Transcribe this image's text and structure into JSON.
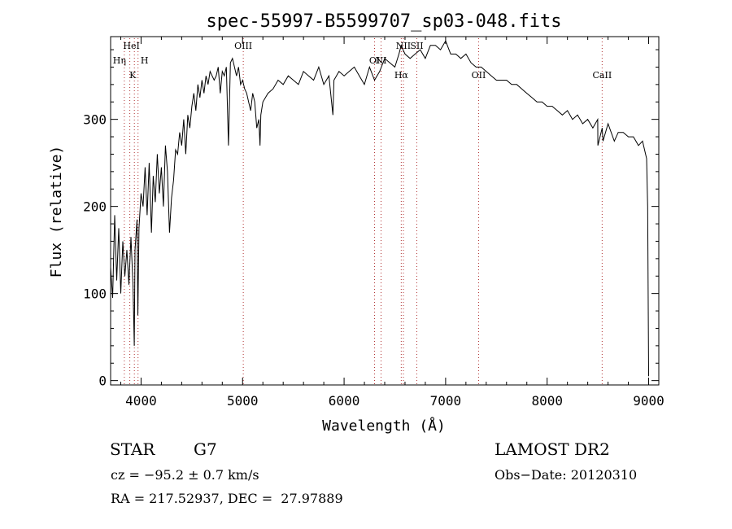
{
  "chart_data": {
    "type": "line",
    "title": "spec-55997-B5599707_sp03-048.fits",
    "xlabel": "Wavelength (Å)",
    "ylabel": "Flux (relative)",
    "xlim": [
      3700,
      9100
    ],
    "ylim": [
      -5,
      395
    ],
    "x_ticks": [
      4000,
      5000,
      6000,
      7000,
      8000,
      9000
    ],
    "y_ticks": [
      0,
      100,
      200,
      300
    ],
    "grid": false,
    "series": [
      {
        "x": [
          3700,
          3720,
          3740,
          3760,
          3780,
          3800,
          3820,
          3840,
          3860,
          3880,
          3900,
          3920,
          3933,
          3940,
          3960,
          3968,
          3980,
          4000,
          4020,
          4040,
          4060,
          4080,
          4102,
          4120,
          4140,
          4160,
          4180,
          4200,
          4220,
          4240,
          4260,
          4280,
          4300,
          4320,
          4340,
          4360,
          4380,
          4400,
          4420,
          4440,
          4460,
          4480,
          4500,
          4520,
          4540,
          4560,
          4580,
          4600,
          4620,
          4640,
          4660,
          4680,
          4700,
          4720,
          4740,
          4760,
          4780,
          4800,
          4820,
          4840,
          4861,
          4880,
          4900,
          4920,
          4940,
          4960,
          4980,
          5000,
          5020,
          5040,
          5060,
          5080,
          5100,
          5120,
          5140,
          5160,
          5172,
          5180,
          5200,
          5250,
          5300,
          5350,
          5400,
          5450,
          5500,
          5550,
          5600,
          5650,
          5700,
          5750,
          5800,
          5850,
          5890,
          5900,
          5950,
          6000,
          6050,
          6100,
          6150,
          6200,
          6250,
          6300,
          6350,
          6400,
          6450,
          6500,
          6540,
          6563,
          6580,
          6600,
          6650,
          6700,
          6750,
          6800,
          6850,
          6900,
          6950,
          7000,
          7050,
          7100,
          7150,
          7200,
          7250,
          7300,
          7350,
          7400,
          7450,
          7500,
          7550,
          7600,
          7650,
          7700,
          7750,
          7800,
          7850,
          7900,
          7950,
          8000,
          8050,
          8100,
          8150,
          8200,
          8250,
          8300,
          8350,
          8400,
          8450,
          8498,
          8500,
          8542,
          8550,
          8600,
          8662,
          8700,
          8750,
          8800,
          8850,
          8900,
          8940,
          8960,
          8980,
          8990,
          9000
        ],
        "y": [
          130,
          95,
          190,
          115,
          175,
          100,
          160,
          120,
          150,
          110,
          165,
          110,
          40,
          150,
          185,
          75,
          175,
          215,
          200,
          245,
          190,
          250,
          170,
          235,
          205,
          260,
          215,
          245,
          200,
          270,
          240,
          170,
          210,
          230,
          265,
          260,
          285,
          270,
          300,
          260,
          305,
          290,
          315,
          330,
          310,
          340,
          325,
          345,
          330,
          350,
          340,
          355,
          350,
          345,
          350,
          360,
          330,
          355,
          350,
          360,
          270,
          365,
          370,
          360,
          350,
          360,
          340,
          345,
          335,
          330,
          320,
          310,
          330,
          320,
          290,
          300,
          270,
          305,
          320,
          330,
          335,
          345,
          340,
          350,
          345,
          340,
          355,
          350,
          345,
          360,
          340,
          350,
          305,
          345,
          355,
          350,
          355,
          360,
          350,
          340,
          360,
          345,
          355,
          370,
          365,
          360,
          375,
          385,
          380,
          375,
          370,
          375,
          380,
          370,
          385,
          385,
          380,
          390,
          375,
          375,
          370,
          375,
          365,
          360,
          360,
          355,
          350,
          345,
          345,
          345,
          340,
          340,
          335,
          330,
          325,
          320,
          320,
          315,
          315,
          310,
          305,
          310,
          300,
          305,
          295,
          300,
          290,
          300,
          270,
          290,
          275,
          295,
          275,
          285,
          285,
          280,
          280,
          270,
          275,
          265,
          255,
          200,
          5
        ]
      }
    ],
    "annotations": [
      {
        "label": "HeI",
        "x": 3889
      },
      {
        "label": "Hη",
        "x": 3835
      },
      {
        "label": "H",
        "x": 3970
      },
      {
        "label": "K",
        "x": 3934
      },
      {
        "label": "OIII",
        "x": 5007
      },
      {
        "label": "OI",
        "x": 6300
      },
      {
        "label": "NI",
        "x": 6364
      },
      {
        "label": "Hα",
        "x": 6563
      },
      {
        "label": "NII",
        "x": 6584
      },
      {
        "label": "SII",
        "x": 6716
      },
      {
        "label": "OII",
        "x": 7325
      },
      {
        "label": "CaII",
        "x": 8542
      }
    ]
  },
  "info": {
    "class_label": "STAR",
    "subclass": "G7",
    "cz": "cz = −95.2 ± 0.7 km/s",
    "coords": "RA = 217.52937, DEC =  27.97889",
    "survey": "LAMOST DR2",
    "obs_date": "Obs−Date: 20120310"
  }
}
